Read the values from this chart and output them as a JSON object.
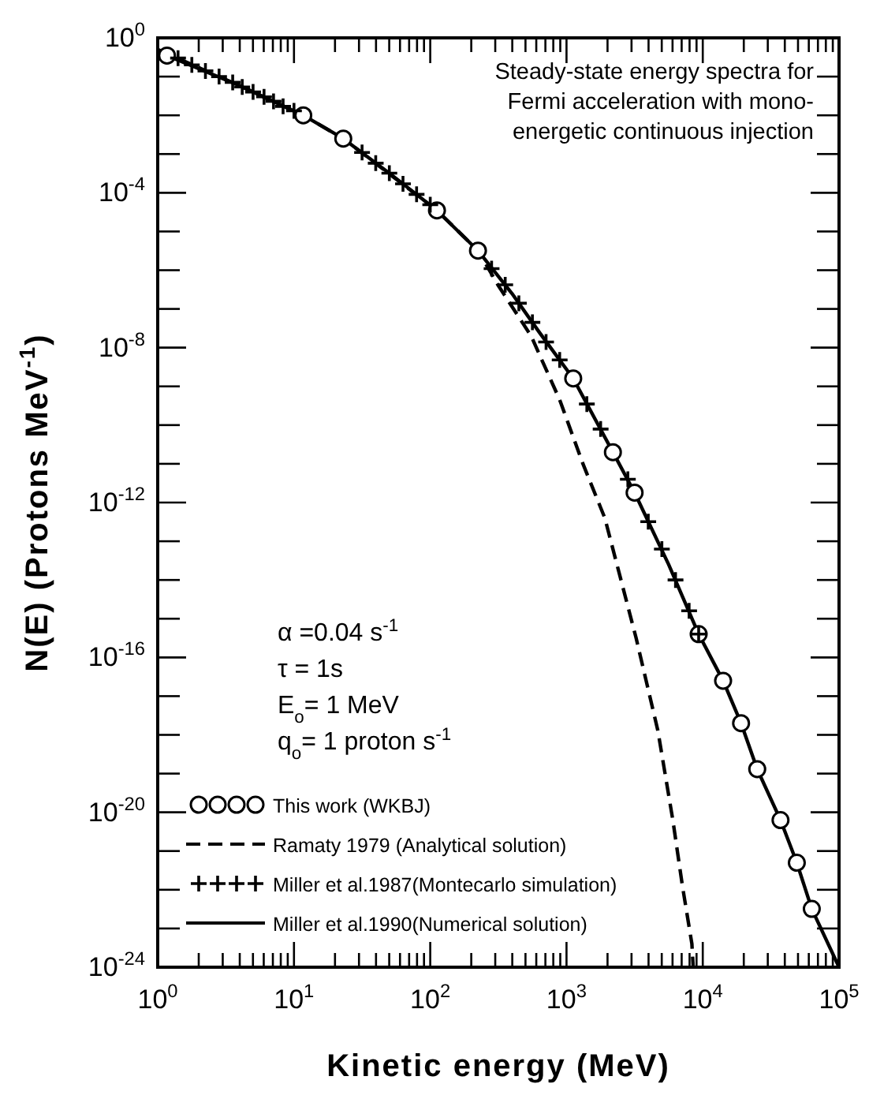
{
  "chart_data": {
    "type": "line",
    "xlabel": "Kinetic energy (MeV)",
    "ylabel": "N(E) (Protons MeV$^{-1}$)",
    "log": "xy",
    "xlim": [
      1,
      100000
    ],
    "ylim": [
      1e-24,
      1
    ],
    "xticks": [
      {
        "value": 1,
        "label": "10$^{0}$"
      },
      {
        "value": 2,
        "label": null
      },
      {
        "value": 3,
        "label": null
      },
      {
        "value": 4,
        "label": null
      },
      {
        "value": 5,
        "label": null
      },
      {
        "value": 6,
        "label": null
      },
      {
        "value": 7,
        "label": null
      },
      {
        "value": 8,
        "label": null
      },
      {
        "value": 9,
        "label": null
      },
      {
        "value": 10,
        "label": "10$^{1}$"
      },
      {
        "value": 20,
        "label": null
      },
      {
        "value": 30,
        "label": null
      },
      {
        "value": 40,
        "label": null
      },
      {
        "value": 50,
        "label": null
      },
      {
        "value": 60,
        "label": null
      },
      {
        "value": 70,
        "label": null
      },
      {
        "value": 80,
        "label": null
      },
      {
        "value": 90,
        "label": null
      },
      {
        "value": 100,
        "label": "10$^{2}$"
      },
      {
        "value": 200,
        "label": null
      },
      {
        "value": 300,
        "label": null
      },
      {
        "value": 400,
        "label": null
      },
      {
        "value": 500,
        "label": null
      },
      {
        "value": 600,
        "label": null
      },
      {
        "value": 700,
        "label": null
      },
      {
        "value": 800,
        "label": null
      },
      {
        "value": 900,
        "label": null
      },
      {
        "value": 1000,
        "label": "10$^{3}$"
      },
      {
        "value": 2000,
        "label": null
      },
      {
        "value": 3000,
        "label": null
      },
      {
        "value": 4000,
        "label": null
      },
      {
        "value": 5000,
        "label": null
      },
      {
        "value": 6000,
        "label": null
      },
      {
        "value": 7000,
        "label": null
      },
      {
        "value": 8000,
        "label": null
      },
      {
        "value": 9000,
        "label": null
      },
      {
        "value": 10000,
        "label": "10$^{4}$"
      },
      {
        "value": 20000,
        "label": null
      },
      {
        "value": 30000,
        "label": null
      },
      {
        "value": 40000,
        "label": null
      },
      {
        "value": 50000,
        "label": null
      },
      {
        "value": 60000,
        "label": null
      },
      {
        "value": 70000,
        "label": null
      },
      {
        "value": 80000,
        "label": null
      },
      {
        "value": 90000,
        "label": null
      },
      {
        "value": 100000,
        "label": "10$^{5}$"
      }
    ],
    "yticks": [
      {
        "value": 1,
        "label": "10$^{0}$"
      },
      {
        "value": 0.1,
        "label": null
      },
      {
        "value": 0.01,
        "label": null
      },
      {
        "value": 0.001,
        "label": null
      },
      {
        "value": 0.0001,
        "label": "10$^{-4}$"
      },
      {
        "value": 1e-05,
        "label": null
      },
      {
        "value": 1e-06,
        "label": null
      },
      {
        "value": 1e-07,
        "label": null
      },
      {
        "value": 1e-08,
        "label": "10$^{-8}$"
      },
      {
        "value": 1e-09,
        "label": null
      },
      {
        "value": 1e-10,
        "label": null
      },
      {
        "value": 1e-11,
        "label": null
      },
      {
        "value": 1e-12,
        "label": "10$^{-12}$"
      },
      {
        "value": 1e-13,
        "label": null
      },
      {
        "value": 1e-14,
        "label": null
      },
      {
        "value": 1e-15,
        "label": null
      },
      {
        "value": 1e-16,
        "label": "10$^{-16}$"
      },
      {
        "value": 1e-17,
        "label": null
      },
      {
        "value": 1e-18,
        "label": null
      },
      {
        "value": 1e-19,
        "label": null
      },
      {
        "value": 1e-20,
        "label": "10$^{-20}$"
      },
      {
        "value": 1e-21,
        "label": null
      },
      {
        "value": 1e-22,
        "label": null
      },
      {
        "value": 1e-23,
        "label": null
      },
      {
        "value": 1e-24,
        "label": "10$^{-24}$"
      }
    ],
    "legend": "bottom left",
    "annotations": [
      "Steady-state energy spectra for\nFermi acceleration with mono-\nenergetic continuous injection",
      "α =0.04 s$^{-1}$",
      "τ = 1s",
      "E$_{o}$= 1 MeV",
      "q$_{o}$= 1 proton s$^{-1}$"
    ],
    "series": [
      {
        "name": "This work (WKBJ)",
        "type": "scatter",
        "marker": "circle",
        "color": "#000000",
        "x": [
          1.17,
          11.7,
          23,
          112,
          224,
          1120,
          2190,
          3160,
          9330,
          14100,
          19100,
          25100,
          37200,
          49000,
          63100
        ],
        "values": [
          0.35,
          0.01,
          0.0025,
          3.5e-05,
          3.2e-06,
          1.6e-09,
          2e-11,
          1.8e-12,
          4e-16,
          2.5e-17,
          2e-18,
          1.3e-19,
          6.3e-21,
          5e-22,
          3.2e-23
        ]
      },
      {
        "name": "Ramaty 1979 (Analytical solution)",
        "type": "line",
        "line_style": "dashed",
        "color": "#000000",
        "x": [
          1,
          3.8,
          11.7,
          23,
          112,
          224,
          316,
          550,
          891,
          1320,
          1910,
          3240,
          4680,
          6030,
          7080,
          8320,
          8510
        ],
        "values": [
          0.5,
          0.063,
          0.01,
          0.0025,
          3.5e-05,
          3.2e-06,
          4e-07,
          2e-08,
          4.5e-10,
          1e-11,
          4e-13,
          3.2e-16,
          1.3e-18,
          6.3e-21,
          1.3e-22,
          4e-24,
          1e-24
        ]
      },
      {
        "name": "Miller et al.1987(Montecarlo simulation)",
        "type": "scatter",
        "marker": "cross",
        "color": "#000000",
        "x": [
          1.41,
          1.78,
          2.24,
          2.82,
          3.55,
          4.17,
          5.01,
          6.03,
          7.08,
          8.32,
          10,
          31.6,
          39.8,
          50.1,
          63.1,
          79.4,
          100,
          282,
          355,
          447,
          562,
          708,
          891,
          1410,
          1780,
          2820,
          3980,
          5010,
          6310,
          7940,
          9330
        ],
        "values": [
          0.3,
          0.2,
          0.14,
          0.1,
          0.071,
          0.054,
          0.04,
          0.03,
          0.023,
          0.017,
          0.013,
          0.0011,
          0.00058,
          0.00032,
          0.00017,
          9.1e-05,
          4.9e-05,
          1.1e-06,
          4.2e-07,
          1.4e-07,
          4.5e-08,
          1.4e-08,
          4.8e-09,
          3.5e-10,
          7.9e-11,
          4e-12,
          3.2e-13,
          6.3e-14,
          1e-14,
          1.6e-15,
          4e-16
        ]
      },
      {
        "name": "Miller et al.1990(Numerical solution)",
        "type": "line",
        "line_style": "solid",
        "color": "#000000",
        "x": [
          1,
          1.17,
          3.8,
          11.7,
          23,
          50,
          112,
          224,
          398,
          631,
          1120,
          2190,
          3160,
          5620,
          9330,
          14100,
          19100,
          25100,
          37200,
          49000,
          63100,
          100000
        ],
        "values": [
          0.5,
          0.35,
          0.063,
          0.01,
          0.0025,
          0.00032,
          3.5e-05,
          3.2e-06,
          2.5e-07,
          2.5e-08,
          1.6e-09,
          2e-11,
          1.8e-12,
          2.5e-14,
          4e-16,
          2.5e-17,
          2e-18,
          1.3e-19,
          6.3e-21,
          5e-22,
          3.2e-23,
          1e-24
        ]
      }
    ]
  }
}
